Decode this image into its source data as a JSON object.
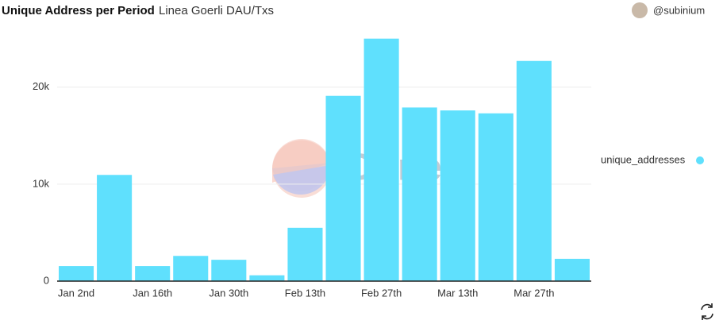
{
  "header": {
    "title": "Unique Address per Period",
    "subtitle": "Linea Goerli DAU/Txs",
    "author": "@subinium"
  },
  "watermark": "Dune",
  "chart_data": {
    "type": "bar",
    "categories": [
      "Jan 2nd",
      null,
      "Jan 16th",
      null,
      "Jan 30th",
      null,
      "Feb 13th",
      null,
      "Feb 27th",
      null,
      "Mar 13th",
      null,
      "Mar 27th",
      null
    ],
    "series": [
      {
        "name": "unique_addresses",
        "color": "#5fe0fd",
        "values": [
          1550,
          10950,
          1550,
          2600,
          2200,
          600,
          5500,
          19100,
          25000,
          17900,
          17600,
          17300,
          22700,
          2300
        ]
      }
    ],
    "ylim": [
      0,
      25300
    ],
    "yticks": [
      0,
      {
        "value": 10000,
        "label": "10k"
      },
      {
        "value": 20000,
        "label": "20k"
      }
    ],
    "grid": true,
    "legend": "right"
  }
}
